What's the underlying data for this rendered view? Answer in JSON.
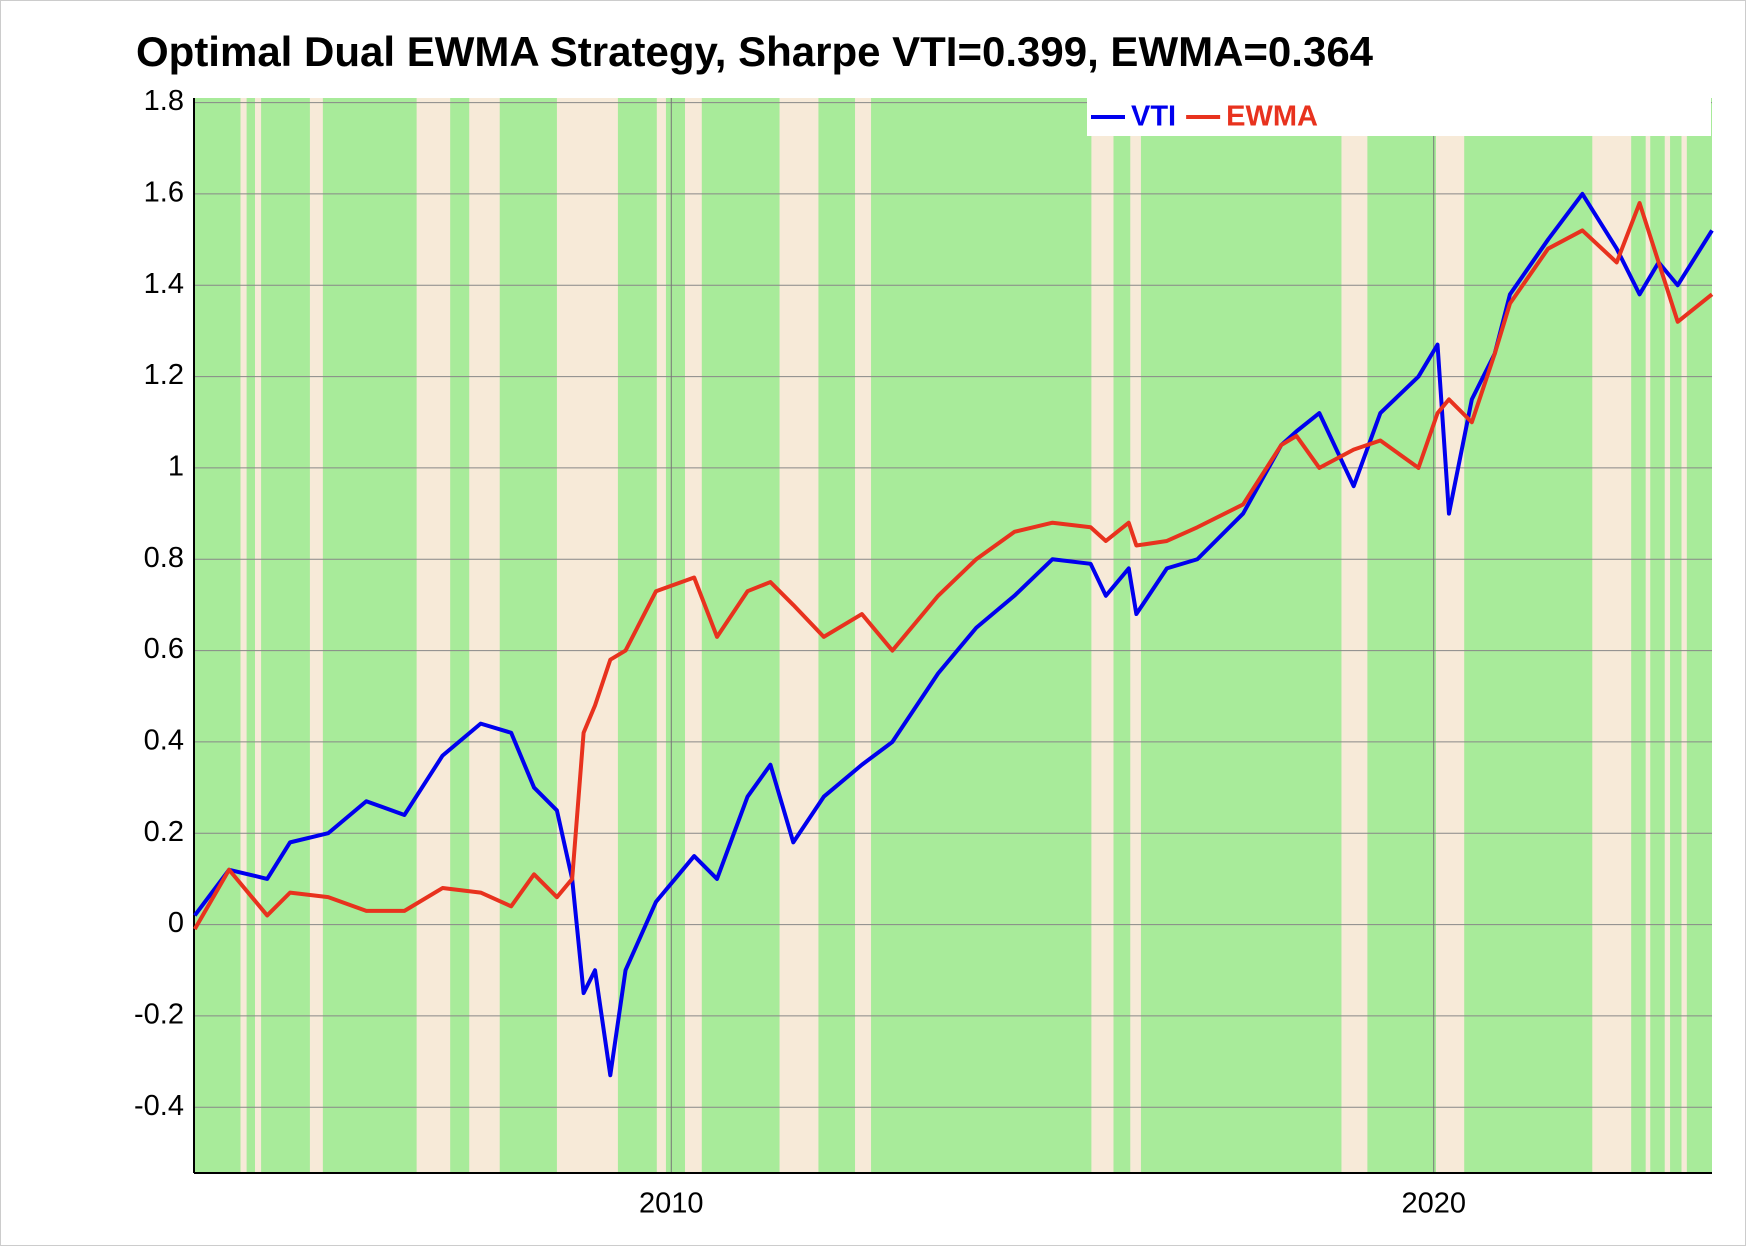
{
  "chart_data": {
    "type": "line",
    "title": "Optimal Dual EWMA Strategy, Sharpe VTI=0.399, EWMA=0.364",
    "x": [
      2003.75,
      2004.2,
      2004.7,
      2005.0,
      2005.5,
      2006.0,
      2006.5,
      2007.0,
      2007.5,
      2007.9,
      2008.2,
      2008.5,
      2008.7,
      2008.85,
      2009.0,
      2009.2,
      2009.4,
      2009.8,
      2010.3,
      2010.6,
      2011.0,
      2011.3,
      2011.6,
      2012.0,
      2012.5,
      2012.9,
      2013.5,
      2014.0,
      2014.5,
      2015.0,
      2015.5,
      2015.7,
      2016.0,
      2016.1,
      2016.5,
      2016.9,
      2017.5,
      2018.0,
      2018.2,
      2018.5,
      2018.95,
      2019.3,
      2019.8,
      2020.05,
      2020.2,
      2020.5,
      2020.8,
      2021.0,
      2021.5,
      2021.95,
      2022.4,
      2022.7,
      2022.95,
      2023.2,
      2023.65
    ],
    "series": [
      {
        "name": "VTI",
        "color": "#0000ee",
        "values": [
          0.02,
          0.12,
          0.1,
          0.18,
          0.2,
          0.27,
          0.24,
          0.37,
          0.44,
          0.42,
          0.3,
          0.25,
          0.1,
          -0.15,
          -0.1,
          -0.33,
          -0.1,
          0.05,
          0.15,
          0.1,
          0.28,
          0.35,
          0.18,
          0.28,
          0.35,
          0.4,
          0.55,
          0.65,
          0.72,
          0.8,
          0.79,
          0.72,
          0.78,
          0.68,
          0.78,
          0.8,
          0.9,
          1.05,
          1.08,
          1.12,
          0.96,
          1.12,
          1.2,
          1.27,
          0.9,
          1.15,
          1.25,
          1.38,
          1.5,
          1.6,
          1.48,
          1.38,
          1.45,
          1.4,
          1.52
        ]
      },
      {
        "name": "EWMA",
        "color": "#e8321e",
        "values": [
          -0.01,
          0.12,
          0.02,
          0.07,
          0.06,
          0.03,
          0.03,
          0.08,
          0.07,
          0.04,
          0.11,
          0.06,
          0.1,
          0.42,
          0.48,
          0.58,
          0.6,
          0.73,
          0.76,
          0.63,
          0.73,
          0.75,
          0.7,
          0.63,
          0.68,
          0.6,
          0.72,
          0.8,
          0.86,
          0.88,
          0.87,
          0.84,
          0.88,
          0.83,
          0.84,
          0.87,
          0.92,
          1.05,
          1.07,
          1.0,
          1.04,
          1.06,
          1.0,
          1.12,
          1.15,
          1.1,
          1.25,
          1.36,
          1.48,
          1.52,
          1.45,
          1.58,
          1.45,
          1.32,
          1.38
        ]
      }
    ],
    "background": "#a8eb9a",
    "shading": {
      "color": "#f7ead8",
      "intervals": [
        [
          2004.35,
          2004.43
        ],
        [
          2004.54,
          2004.62
        ],
        [
          2005.26,
          2005.43
        ],
        [
          2006.66,
          2007.1
        ],
        [
          2007.35,
          2007.75
        ],
        [
          2008.5,
          2009.3
        ],
        [
          2009.81,
          2009.93
        ],
        [
          2010.18,
          2010.4
        ],
        [
          2011.42,
          2011.93
        ],
        [
          2012.41,
          2012.62
        ],
        [
          2015.51,
          2015.8
        ],
        [
          2016.02,
          2016.16
        ],
        [
          2018.79,
          2019.13
        ],
        [
          2020.03,
          2020.4
        ],
        [
          2022.08,
          2022.59
        ],
        [
          2022.78,
          2022.84
        ],
        [
          2023.03,
          2023.1
        ],
        [
          2023.25,
          2023.32
        ]
      ]
    },
    "xlim": [
      2003.74,
      2023.65
    ],
    "xticks": [
      2010,
      2020
    ],
    "ylim": [
      -0.544,
      1.81
    ],
    "yticks": [
      -0.4,
      -0.2,
      0,
      0.2,
      0.4,
      0.6,
      0.8,
      1,
      1.2,
      1.4,
      1.6,
      1.8
    ],
    "grid": true,
    "legend": "top-right"
  }
}
